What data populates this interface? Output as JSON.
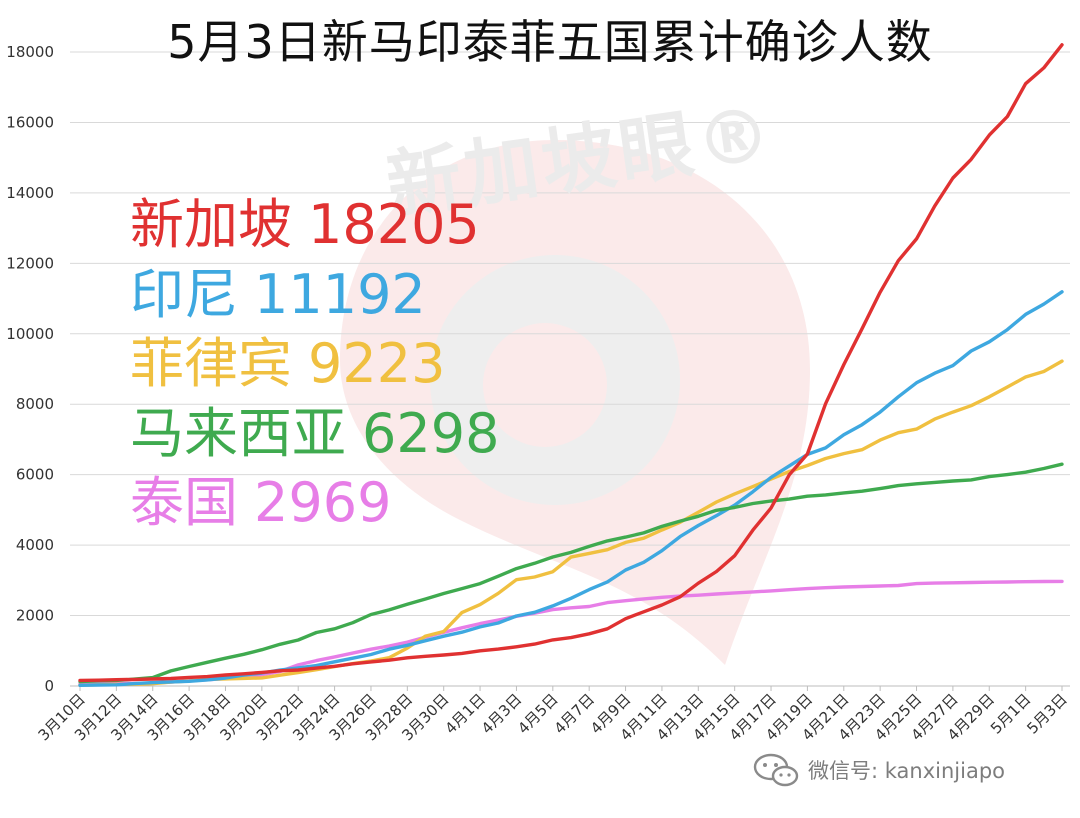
{
  "title": "5月3日新马印泰菲五国累计确诊人数",
  "watermark": "新加坡眼®",
  "footer": {
    "icon": "wechat-icon",
    "text": "微信号: kanxinjiapo"
  },
  "chart_data": {
    "type": "line",
    "title": "5月3日新马印泰菲五国累计确诊人数",
    "xlabel": "",
    "ylabel": "",
    "ylim": [
      0,
      18000
    ],
    "yticks": [
      0,
      2000,
      4000,
      6000,
      8000,
      10000,
      12000,
      14000,
      16000,
      18000
    ],
    "grid": true,
    "legend": "inline-left",
    "x_tick_labels": [
      "3月10日",
      "3月12日",
      "3月14日",
      "3月16日",
      "3月18日",
      "3月20日",
      "3月22日",
      "3月24日",
      "3月26日",
      "3月28日",
      "3月30日",
      "4月1日",
      "4月3日",
      "4月5日",
      "4月7日",
      "4月9日",
      "4月11日",
      "4月13日",
      "4月15日",
      "4月17日",
      "4月19日",
      "4月21日",
      "4月23日",
      "4月25日",
      "4月27日",
      "4月29日",
      "5月1日",
      "5月3日"
    ],
    "x": [
      "3月10日",
      "3月11日",
      "3月12日",
      "3月13日",
      "3月14日",
      "3月15日",
      "3月16日",
      "3月17日",
      "3月18日",
      "3月19日",
      "3月20日",
      "3月21日",
      "3月22日",
      "3月23日",
      "3月24日",
      "3月25日",
      "3月26日",
      "3月27日",
      "3月28日",
      "3月29日",
      "3月30日",
      "3月31日",
      "4月1日",
      "4月2日",
      "4月3日",
      "4月4日",
      "4月5日",
      "4月6日",
      "4月7日",
      "4月8日",
      "4月9日",
      "4月10日",
      "4月11日",
      "4月12日",
      "4月13日",
      "4月14日",
      "4月15日",
      "4月16日",
      "4月17日",
      "4月18日",
      "4月19日",
      "4月20日",
      "4月21日",
      "4月22日",
      "4月23日",
      "4月24日",
      "4月25日",
      "4月26日",
      "4月27日",
      "4月28日",
      "4月29日",
      "4月30日",
      "5月1日",
      "5月2日",
      "5月3日"
    ],
    "series": [
      {
        "name": "新加坡",
        "label": "18205",
        "color": "#e03131",
        "values": [
          160,
          166,
          178,
          187,
          200,
          212,
          243,
          266,
          313,
          345,
          385,
          432,
          455,
          509,
          558,
          631,
          683,
          732,
          802,
          844,
          879,
          926,
          1000,
          1049,
          1114,
          1189,
          1309,
          1375,
          1481,
          1623,
          1910,
          2108,
          2299,
          2532,
          2918,
          3252,
          3699,
          4427,
          5050,
          5992,
          6588,
          8014,
          9125,
          10141,
          11178,
          12075,
          12693,
          13624,
          14423,
          14951,
          15641,
          16169,
          17101,
          17548,
          18205
        ]
      },
      {
        "name": "印尼",
        "label": "11192",
        "color": "#3ea8e0",
        "values": [
          19,
          27,
          34,
          69,
          96,
          117,
          134,
          172,
          227,
          309,
          369,
          450,
          514,
          579,
          686,
          790,
          893,
          1046,
          1155,
          1285,
          1414,
          1528,
          1677,
          1790,
          1986,
          2092,
          2273,
          2491,
          2738,
          2956,
          3293,
          3512,
          3842,
          4241,
          4557,
          4839,
          5136,
          5516,
          5923,
          6248,
          6575,
          6760,
          7135,
          7418,
          7775,
          8211,
          8607,
          8882,
          9096,
          9511,
          9771,
          10118,
          10551,
          10843,
          11192
        ]
      },
      {
        "name": "菲律宾",
        "label": "9223",
        "color": "#f0c040",
        "values": [
          24,
          33,
          49,
          52,
          64,
          111,
          140,
          187,
          202,
          217,
          230,
          307,
          380,
          462,
          552,
          636,
          707,
          803,
          1075,
          1418,
          1546,
          2084,
          2311,
          2633,
          3018,
          3094,
          3246,
          3660,
          3764,
          3870,
          4076,
          4195,
          4428,
          4648,
          4932,
          5223,
          5453,
          5660,
          5878,
          6087,
          6259,
          6459,
          6599,
          6710,
          6981,
          7192,
          7294,
          7579,
          7777,
          7958,
          8212,
          8488,
          8772,
          8928,
          9223
        ]
      },
      {
        "name": "马来西亚",
        "label": "6298",
        "color": "#3faa4f",
        "values": [
          129,
          149,
          158,
          197,
          238,
          428,
          553,
          673,
          790,
          900,
          1030,
          1183,
          1306,
          1518,
          1624,
          1796,
          2031,
          2161,
          2320,
          2470,
          2626,
          2766,
          2908,
          3116,
          3333,
          3483,
          3662,
          3793,
          3963,
          4119,
          4228,
          4346,
          4530,
          4683,
          4817,
          4987,
          5072,
          5182,
          5251,
          5305,
          5389,
          5425,
          5482,
          5532,
          5603,
          5691,
          5742,
          5780,
          5820,
          5851,
          5945,
          6002,
          6071,
          6176,
          6298
        ]
      },
      {
        "name": "泰国",
        "label": "2969",
        "color": "#e77ee7",
        "values": [
          53,
          59,
          70,
          75,
          82,
          114,
          147,
          177,
          212,
          272,
          322,
          411,
          599,
          721,
          827,
          934,
          1045,
          1136,
          1245,
          1388,
          1524,
          1651,
          1771,
          1875,
          1978,
          2067,
          2169,
          2220,
          2258,
          2369,
          2423,
          2473,
          2518,
          2551,
          2579,
          2613,
          2643,
          2672,
          2700,
          2733,
          2765,
          2792,
          2811,
          2826,
          2839,
          2854,
          2907,
          2922,
          2931,
          2938,
          2947,
          2954,
          2960,
          2966,
          2969
        ]
      }
    ]
  }
}
